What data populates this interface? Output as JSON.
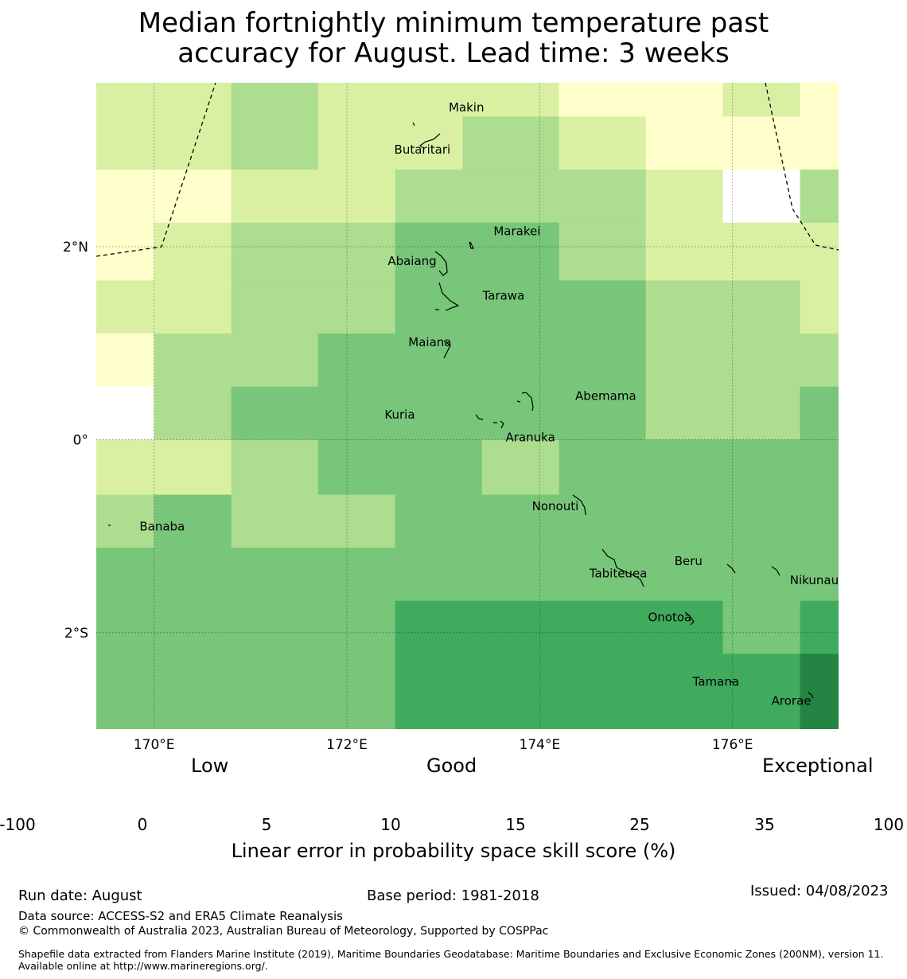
{
  "title": {
    "line1": "Median fortnightly minimum temperature past",
    "line2": "accuracy for August. Lead time: 3 weeks"
  },
  "map": {
    "lon_range": [
      169.4,
      177.1
    ],
    "lat_range": [
      -3.0,
      3.7
    ],
    "x_ticks": [
      {
        "value": 170,
        "label": "170°E"
      },
      {
        "value": 172,
        "label": "172°E"
      },
      {
        "value": 174,
        "label": "174°E"
      },
      {
        "value": 176,
        "label": "176°E"
      }
    ],
    "y_ticks": [
      {
        "value": 2,
        "label": "2°N"
      },
      {
        "value": 0,
        "label": "0°"
      },
      {
        "value": -2,
        "label": "2°S"
      }
    ],
    "grid": true,
    "colors": [
      "#ffffff",
      "#ffffcc",
      "#d9f0a3",
      "#addd8e",
      "#78c679",
      "#41ab5d",
      "#238443"
    ],
    "skill_cells": [
      {
        "lon": [
          169.4,
          170.8
        ],
        "lat": [
          2.8,
          3.7
        ],
        "level": 2
      },
      {
        "lon": [
          170.8,
          171.7
        ],
        "lat": [
          2.8,
          3.7
        ],
        "level": 3
      },
      {
        "lon": [
          171.7,
          173.2
        ],
        "lat": [
          2.8,
          3.7
        ],
        "level": 2
      },
      {
        "lon": [
          173.2,
          174.2
        ],
        "lat": [
          3.35,
          3.7
        ],
        "level": 2
      },
      {
        "lon": [
          174.2,
          175.9
        ],
        "lat": [
          3.35,
          3.7
        ],
        "level": 1
      },
      {
        "lon": [
          175.9,
          176.7
        ],
        "lat": [
          3.35,
          3.7
        ],
        "level": 2
      },
      {
        "lon": [
          176.7,
          177.1
        ],
        "lat": [
          2.8,
          3.7
        ],
        "level": 1
      },
      {
        "lon": [
          173.2,
          174.2
        ],
        "lat": [
          2.8,
          3.35
        ],
        "level": 3
      },
      {
        "lon": [
          174.2,
          175.1
        ],
        "lat": [
          2.8,
          3.35
        ],
        "level": 2
      },
      {
        "lon": [
          175.1,
          176.7
        ],
        "lat": [
          2.8,
          3.35
        ],
        "level": 1
      },
      {
        "lon": [
          169.4,
          170.8
        ],
        "lat": [
          2.25,
          2.8
        ],
        "level": 1
      },
      {
        "lon": [
          170.8,
          172.5
        ],
        "lat": [
          2.25,
          2.8
        ],
        "level": 2
      },
      {
        "lon": [
          172.5,
          175.1
        ],
        "lat": [
          2.25,
          2.8
        ],
        "level": 3
      },
      {
        "lon": [
          175.1,
          175.9
        ],
        "lat": [
          2.25,
          2.8
        ],
        "level": 2
      },
      {
        "lon": [
          175.9,
          176.7
        ],
        "lat": [
          2.25,
          2.8
        ],
        "level": 0
      },
      {
        "lon": [
          176.7,
          177.1
        ],
        "lat": [
          2.25,
          2.8
        ],
        "level": 3
      },
      {
        "lon": [
          169.4,
          170.0
        ],
        "lat": [
          1.65,
          2.25
        ],
        "level": 1
      },
      {
        "lon": [
          170.0,
          170.8
        ],
        "lat": [
          1.65,
          2.25
        ],
        "level": 2
      },
      {
        "lon": [
          170.8,
          172.5
        ],
        "lat": [
          1.65,
          2.25
        ],
        "level": 3
      },
      {
        "lon": [
          172.5,
          174.2
        ],
        "lat": [
          1.65,
          2.25
        ],
        "level": 4
      },
      {
        "lon": [
          174.2,
          175.1
        ],
        "lat": [
          1.65,
          2.25
        ],
        "level": 3
      },
      {
        "lon": [
          175.1,
          177.1
        ],
        "lat": [
          1.65,
          2.25
        ],
        "level": 2
      },
      {
        "lon": [
          169.4,
          170.8
        ],
        "lat": [
          1.1,
          1.65
        ],
        "level": 2
      },
      {
        "lon": [
          170.8,
          172.5
        ],
        "lat": [
          1.1,
          1.65
        ],
        "level": 3
      },
      {
        "lon": [
          172.5,
          175.1
        ],
        "lat": [
          1.1,
          1.65
        ],
        "level": 4
      },
      {
        "lon": [
          175.1,
          176.7
        ],
        "lat": [
          1.1,
          1.65
        ],
        "level": 3
      },
      {
        "lon": [
          176.7,
          177.1
        ],
        "lat": [
          1.1,
          1.65
        ],
        "level": 2
      },
      {
        "lon": [
          169.4,
          170.0
        ],
        "lat": [
          0.55,
          1.1
        ],
        "level": 1
      },
      {
        "lon": [
          170.0,
          171.7
        ],
        "lat": [
          0.55,
          1.1
        ],
        "level": 3
      },
      {
        "lon": [
          171.7,
          175.1
        ],
        "lat": [
          0.55,
          1.1
        ],
        "level": 4
      },
      {
        "lon": [
          175.1,
          177.1
        ],
        "lat": [
          0.55,
          1.1
        ],
        "level": 3
      },
      {
        "lon": [
          169.4,
          170.0
        ],
        "lat": [
          0.0,
          0.55
        ],
        "level": 0
      },
      {
        "lon": [
          170.0,
          170.8
        ],
        "lat": [
          0.0,
          0.55
        ],
        "level": 3
      },
      {
        "lon": [
          170.8,
          175.1
        ],
        "lat": [
          0.0,
          0.55
        ],
        "level": 4
      },
      {
        "lon": [
          175.1,
          176.7
        ],
        "lat": [
          0.0,
          0.55
        ],
        "level": 3
      },
      {
        "lon": [
          176.7,
          177.1
        ],
        "lat": [
          0.0,
          0.55
        ],
        "level": 4
      },
      {
        "lon": [
          169.4,
          170.8
        ],
        "lat": [
          -0.57,
          0.0
        ],
        "level": 2
      },
      {
        "lon": [
          170.8,
          171.7
        ],
        "lat": [
          -0.57,
          0.0
        ],
        "level": 3
      },
      {
        "lon": [
          171.7,
          173.4
        ],
        "lat": [
          -0.57,
          0.0
        ],
        "level": 4
      },
      {
        "lon": [
          173.4,
          174.2
        ],
        "lat": [
          -0.57,
          0.0
        ],
        "level": 3
      },
      {
        "lon": [
          174.2,
          177.1
        ],
        "lat": [
          -0.57,
          0.0
        ],
        "level": 4
      },
      {
        "lon": [
          169.4,
          170.0
        ],
        "lat": [
          -1.12,
          -0.57
        ],
        "level": 3
      },
      {
        "lon": [
          170.0,
          170.8
        ],
        "lat": [
          -1.12,
          -0.57
        ],
        "level": 4
      },
      {
        "lon": [
          170.8,
          172.5
        ],
        "lat": [
          -1.12,
          -0.57
        ],
        "level": 3
      },
      {
        "lon": [
          172.5,
          177.1
        ],
        "lat": [
          -1.12,
          -0.57
        ],
        "level": 4
      },
      {
        "lon": [
          169.4,
          172.5
        ],
        "lat": [
          -1.67,
          -1.12
        ],
        "level": 4
      },
      {
        "lon": [
          172.5,
          177.1
        ],
        "lat": [
          -1.67,
          -1.12
        ],
        "level": 4
      },
      {
        "lon": [
          169.4,
          172.5
        ],
        "lat": [
          -3.0,
          -1.67
        ],
        "level": 4
      },
      {
        "lon": [
          172.5,
          175.9
        ],
        "lat": [
          -3.0,
          -1.67
        ],
        "level": 5
      },
      {
        "lon": [
          175.9,
          176.7
        ],
        "lat": [
          -2.22,
          -1.67
        ],
        "level": 4
      },
      {
        "lon": [
          176.7,
          177.1
        ],
        "lat": [
          -2.22,
          -1.67
        ],
        "level": 5
      },
      {
        "lon": [
          175.9,
          176.7
        ],
        "lat": [
          -3.0,
          -2.22
        ],
        "level": 5
      },
      {
        "lon": [
          176.7,
          177.1
        ],
        "lat": [
          -3.0,
          -2.22
        ],
        "level": 6
      }
    ],
    "islands": [
      {
        "name": "Makin",
        "lon": 172.99,
        "lat": 3.38
      },
      {
        "name": "Butaritari",
        "lon": 172.78,
        "lat": 3.05
      },
      {
        "name": "Marakei",
        "lon": 173.62,
        "lat": 2.07
      },
      {
        "name": "Abaiang",
        "lon": 172.77,
        "lat": 1.81
      },
      {
        "name": "Tarawa",
        "lon": 173.49,
        "lat": 1.45
      },
      {
        "name": "Maiana",
        "lon": 172.72,
        "lat": 0.97
      },
      {
        "name": "Abemama",
        "lon": 174.41,
        "lat": 0.41
      },
      {
        "name": "Kuria",
        "lon": 172.82,
        "lat": 0.22
      },
      {
        "name": "Aranuka",
        "lon": 173.96,
        "lat": 0.04
      },
      {
        "name": "Nonouti",
        "lon": 174.25,
        "lat": -0.73
      },
      {
        "name": "Banaba",
        "lon": 169.89,
        "lat": -0.94
      },
      {
        "name": "Beru",
        "lon": 175.81,
        "lat": -1.3
      },
      {
        "name": "Tabiteuea",
        "lon": 174.68,
        "lat": -1.43
      },
      {
        "name": "Nikunau",
        "lon": 176.76,
        "lat": -1.5
      },
      {
        "name": "Onotoa",
        "lon": 175.47,
        "lat": -1.88
      },
      {
        "name": "Tamana",
        "lon": 175.95,
        "lat": -2.55
      },
      {
        "name": "Arorae",
        "lon": 176.8,
        "lat": -2.75
      }
    ]
  },
  "colorbar": {
    "words": {
      "low": "Low",
      "good": "Good",
      "exceptional": "Exceptional"
    },
    "bins": [
      {
        "from": -100,
        "to": 0,
        "color": "#ffffff"
      },
      {
        "from": 0,
        "to": 5,
        "color": "#ffffcc"
      },
      {
        "from": 5,
        "to": 10,
        "color": "#d9f0a3"
      },
      {
        "from": 10,
        "to": 15,
        "color": "#addd8e"
      },
      {
        "from": 15,
        "to": 25,
        "color": "#78c679"
      },
      {
        "from": 25,
        "to": 35,
        "color": "#41ab5d"
      },
      {
        "from": 35,
        "to": 100,
        "color": "#238443"
      }
    ],
    "tick_labels": [
      "-100",
      "0",
      "5",
      "10",
      "15",
      "25",
      "35",
      "100"
    ],
    "label": "Linear error in probability space skill score (%)"
  },
  "footer": {
    "run_date": "Run date: August",
    "base_period": "Base period: 1981-2018",
    "issued": "Issued: 04/08/2023",
    "data_source": "Data source: ACCESS-S2 and ERA5 Climate Reanalysis",
    "copyright": "© Commonwealth of Australia 2023, Australian Bureau of Meteorology, Supported by COSPPac",
    "shapefile": "Shapefile data extracted from Flanders Marine Institute (2019), Maritime Boundaries Geodatabase: Maritime Boundaries and Exclusive Economic Zones (200NM), version 11. Available online at http://www.marineregions.org/."
  }
}
